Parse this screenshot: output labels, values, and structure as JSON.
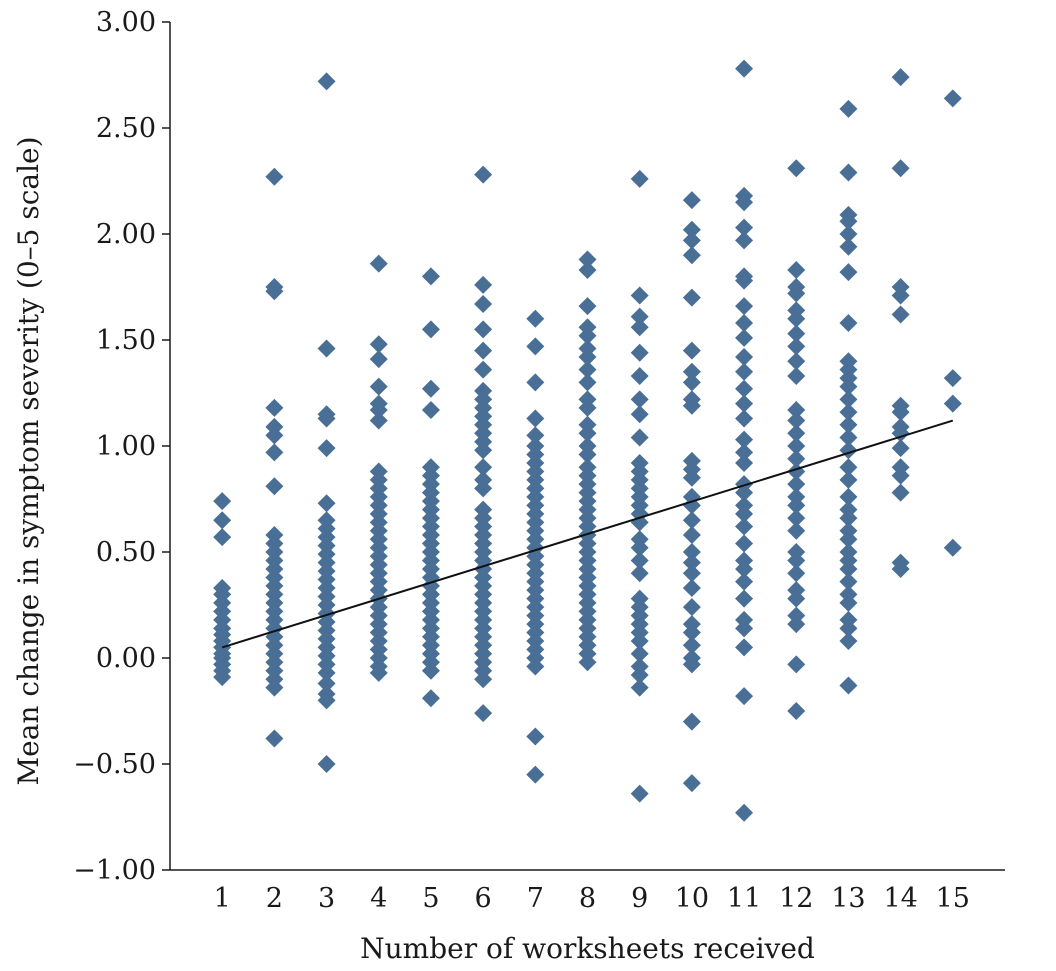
{
  "colors": {
    "marker": "#4a6f96",
    "trend": "#111111",
    "axis": "#1a1a1a"
  },
  "chart_data": {
    "type": "scatter",
    "marker_shape": "diamond",
    "xlabel": "Number of worksheets received",
    "ylabel": "Mean change in symptom severity (0–5 scale)",
    "xlim": [
      0,
      16
    ],
    "ylim": [
      -1.0,
      3.0
    ],
    "x_ticks": [
      1,
      2,
      3,
      4,
      5,
      6,
      7,
      8,
      9,
      10,
      11,
      12,
      13,
      14,
      15
    ],
    "x_tick_labels": [
      "1",
      "2",
      "3",
      "4",
      "5",
      "6",
      "7",
      "8",
      "9",
      "10",
      "11",
      "12",
      "13",
      "14",
      "15"
    ],
    "y_ticks": [
      -1.0,
      -0.5,
      0.0,
      0.5,
      1.0,
      1.5,
      2.0,
      2.5,
      3.0
    ],
    "y_tick_labels": [
      "−1.00",
      "−0.50",
      "0.00",
      "0.50",
      "1.00",
      "1.50",
      "2.00",
      "2.50",
      "3.00"
    ],
    "grid": false,
    "legend": "none",
    "trendline": {
      "x": [
        1,
        15
      ],
      "y": [
        0.05,
        1.12
      ]
    },
    "points_by_x": [
      {
        "x": 1,
        "y": [
          0.74,
          0.65,
          0.57,
          0.33,
          0.3,
          0.26,
          0.22,
          0.18,
          0.14,
          0.11,
          0.08,
          0.05,
          0.02,
          0.0,
          -0.03,
          -0.06,
          -0.09
        ]
      },
      {
        "x": 2,
        "y": [
          2.27,
          1.75,
          1.73,
          1.18,
          1.09,
          1.05,
          0.97,
          0.81,
          0.58,
          0.54,
          0.5,
          0.46,
          0.42,
          0.38,
          0.34,
          0.3,
          0.26,
          0.22,
          0.18,
          0.14,
          0.1,
          0.06,
          0.02,
          -0.02,
          -0.06,
          -0.1,
          -0.14,
          -0.38
        ]
      },
      {
        "x": 3,
        "y": [
          2.72,
          1.46,
          1.15,
          1.13,
          0.99,
          0.73,
          0.65,
          0.61,
          0.57,
          0.53,
          0.49,
          0.45,
          0.41,
          0.37,
          0.33,
          0.29,
          0.25,
          0.21,
          0.17,
          0.13,
          0.09,
          0.05,
          0.01,
          -0.03,
          -0.07,
          -0.12,
          -0.17,
          -0.2,
          -0.5
        ]
      },
      {
        "x": 4,
        "y": [
          1.86,
          1.48,
          1.41,
          1.28,
          1.2,
          1.17,
          1.12,
          0.88,
          0.84,
          0.8,
          0.76,
          0.72,
          0.68,
          0.64,
          0.6,
          0.56,
          0.52,
          0.48,
          0.44,
          0.4,
          0.36,
          0.32,
          0.28,
          0.24,
          0.2,
          0.16,
          0.12,
          0.08,
          0.04,
          0.0,
          -0.04,
          -0.07
        ]
      },
      {
        "x": 5,
        "y": [
          1.8,
          1.55,
          1.27,
          1.17,
          0.9,
          0.86,
          0.82,
          0.78,
          0.74,
          0.7,
          0.66,
          0.62,
          0.58,
          0.54,
          0.5,
          0.46,
          0.42,
          0.38,
          0.34,
          0.3,
          0.26,
          0.22,
          0.18,
          0.14,
          0.1,
          0.06,
          0.02,
          -0.02,
          -0.06,
          -0.19
        ]
      },
      {
        "x": 6,
        "y": [
          2.28,
          1.76,
          1.67,
          1.55,
          1.45,
          1.36,
          1.26,
          1.22,
          1.18,
          1.14,
          1.1,
          1.06,
          1.02,
          0.98,
          0.9,
          0.84,
          0.8,
          0.7,
          0.66,
          0.62,
          0.58,
          0.54,
          0.5,
          0.46,
          0.42,
          0.38,
          0.34,
          0.3,
          0.26,
          0.22,
          0.18,
          0.14,
          0.1,
          0.06,
          0.02,
          -0.02,
          -0.06,
          -0.1,
          -0.26
        ]
      },
      {
        "x": 7,
        "y": [
          1.6,
          1.47,
          1.3,
          1.13,
          1.05,
          1.0,
          0.96,
          0.92,
          0.88,
          0.84,
          0.8,
          0.76,
          0.72,
          0.68,
          0.64,
          0.6,
          0.56,
          0.52,
          0.48,
          0.44,
          0.4,
          0.36,
          0.32,
          0.28,
          0.24,
          0.2,
          0.16,
          0.12,
          0.08,
          0.04,
          0.0,
          -0.04,
          -0.37,
          -0.55
        ]
      },
      {
        "x": 8,
        "y": [
          1.88,
          1.83,
          1.66,
          1.56,
          1.52,
          1.46,
          1.42,
          1.36,
          1.3,
          1.22,
          1.18,
          1.1,
          1.06,
          1.0,
          0.96,
          0.9,
          0.86,
          0.82,
          0.78,
          0.74,
          0.7,
          0.66,
          0.62,
          0.58,
          0.54,
          0.5,
          0.46,
          0.42,
          0.38,
          0.34,
          0.3,
          0.26,
          0.22,
          0.18,
          0.14,
          0.1,
          0.06,
          0.02,
          -0.02
        ]
      },
      {
        "x": 9,
        "y": [
          2.26,
          1.71,
          1.61,
          1.56,
          1.44,
          1.33,
          1.22,
          1.15,
          1.04,
          0.92,
          0.88,
          0.84,
          0.8,
          0.76,
          0.72,
          0.68,
          0.64,
          0.56,
          0.52,
          0.46,
          0.4,
          0.28,
          0.24,
          0.2,
          0.16,
          0.12,
          0.08,
          0.02,
          -0.04,
          -0.08,
          -0.14,
          -0.64
        ]
      },
      {
        "x": 10,
        "y": [
          2.16,
          2.02,
          1.97,
          1.9,
          1.7,
          1.45,
          1.35,
          1.3,
          1.22,
          1.19,
          0.93,
          0.89,
          0.85,
          0.76,
          0.72,
          0.65,
          0.58,
          0.5,
          0.45,
          0.4,
          0.33,
          0.24,
          0.16,
          0.12,
          0.06,
          0.0,
          -0.03,
          -0.3,
          -0.59
        ]
      },
      {
        "x": 11,
        "y": [
          2.78,
          2.18,
          2.15,
          2.03,
          1.97,
          1.8,
          1.78,
          1.66,
          1.58,
          1.51,
          1.42,
          1.35,
          1.27,
          1.2,
          1.13,
          1.03,
          0.97,
          0.92,
          0.82,
          0.78,
          0.72,
          0.68,
          0.62,
          0.54,
          0.46,
          0.42,
          0.36,
          0.28,
          0.18,
          0.14,
          0.05,
          -0.18,
          -0.73
        ]
      },
      {
        "x": 12,
        "y": [
          2.31,
          1.83,
          1.75,
          1.72,
          1.64,
          1.6,
          1.53,
          1.47,
          1.4,
          1.33,
          1.17,
          1.12,
          1.06,
          1.0,
          0.94,
          0.88,
          0.82,
          0.76,
          0.72,
          0.66,
          0.6,
          0.5,
          0.46,
          0.4,
          0.32,
          0.28,
          0.2,
          0.16,
          -0.03,
          -0.25
        ]
      },
      {
        "x": 13,
        "y": [
          2.59,
          2.29,
          2.09,
          2.06,
          2.0,
          1.94,
          1.82,
          1.58,
          1.4,
          1.36,
          1.32,
          1.28,
          1.22,
          1.16,
          1.1,
          1.04,
          0.98,
          0.9,
          0.84,
          0.76,
          0.7,
          0.66,
          0.6,
          0.56,
          0.5,
          0.46,
          0.42,
          0.36,
          0.3,
          0.26,
          0.18,
          0.14,
          0.08,
          -0.13
        ]
      },
      {
        "x": 14,
        "y": [
          2.74,
          2.31,
          1.75,
          1.71,
          1.62,
          1.19,
          1.16,
          1.09,
          1.06,
          0.99,
          0.9,
          0.86,
          0.78,
          0.45,
          0.42
        ]
      },
      {
        "x": 15,
        "y": [
          2.64,
          1.32,
          1.2,
          0.52
        ]
      }
    ]
  }
}
